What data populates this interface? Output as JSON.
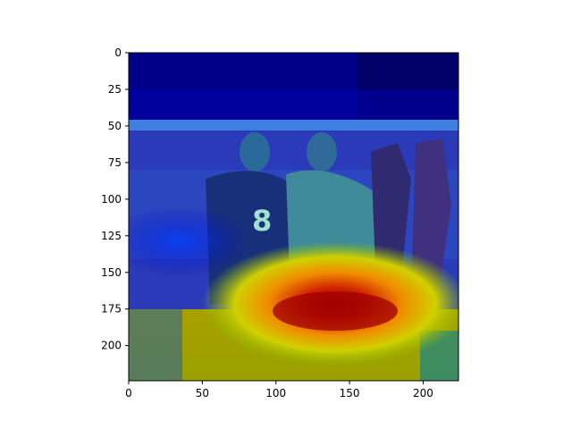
{
  "figure": {
    "kind": "image plot with heatmap overlay",
    "colormap": "jet",
    "overlay_opacity": 0.5,
    "axes_frame": true
  },
  "image": {
    "description_icon": "photo-icon",
    "subject": "people-at-football-field"
  },
  "axes": {
    "x": {
      "min": 0,
      "max": 224,
      "ticks": [
        0,
        50,
        100,
        150,
        200
      ]
    },
    "y": {
      "min": 0,
      "max": 224,
      "inverted": true,
      "ticks": [
        0,
        25,
        50,
        75,
        100,
        125,
        150,
        175,
        200
      ]
    }
  },
  "heatmap": {
    "peak": {
      "x": 145,
      "y": 175
    },
    "color_peak": "#b00000",
    "color_low": "#00008b"
  }
}
